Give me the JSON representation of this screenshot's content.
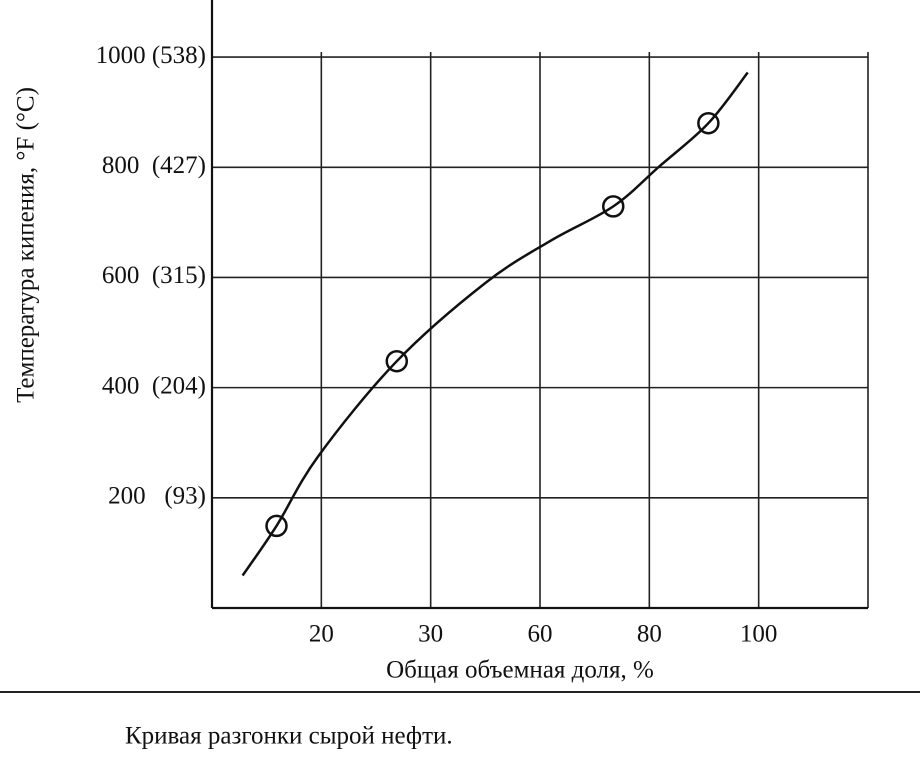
{
  "chart_data": {
    "type": "line",
    "y_label": "Температура кипения,  °F (°C)",
    "x_label": "Общая объемная доля, %",
    "caption": "Кривая разгонки сырой нефти.",
    "xlim": [
      0,
      6
    ],
    "xticks": [
      {
        "value": 1,
        "label": "20"
      },
      {
        "value": 2,
        "label": "30"
      },
      {
        "value": 3,
        "label": "60"
      },
      {
        "value": 4,
        "label": "80"
      },
      {
        "value": 5,
        "label": "100"
      }
    ],
    "ylim": [
      0,
      1100
    ],
    "yticks": [
      {
        "value": 200,
        "label": "200   (93)"
      },
      {
        "value": 400,
        "label": "400  (204)"
      },
      {
        "value": 600,
        "label": "600  (315)"
      },
      {
        "value": 800,
        "label": "800  (427)"
      },
      {
        "value": 1000,
        "label": "1000 (538)"
      }
    ],
    "grid": true,
    "series": [
      {
        "color": "#111111",
        "marker": "none",
        "x": [
          0.28,
          0.59,
          0.97,
          1.69,
          2.5,
          3.1,
          3.67,
          4.1,
          4.54,
          4.9
        ],
        "values": [
          59,
          149,
          275,
          448,
          590,
          667,
          729,
          803,
          880,
          972
        ]
      },
      {
        "color": "#111111",
        "marker": "circle",
        "x": [
          0.59,
          1.69,
          3.67,
          4.54
        ],
        "values": [
          149,
          448,
          729,
          880
        ]
      }
    ]
  }
}
